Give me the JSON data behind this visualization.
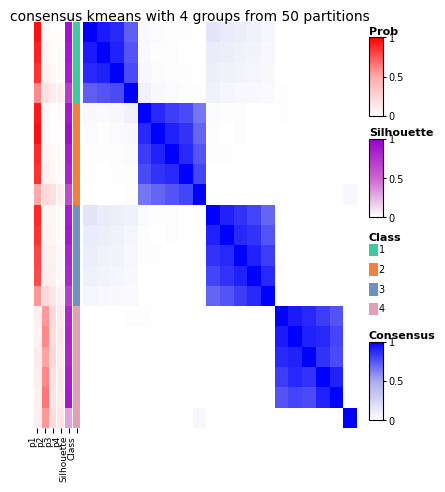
{
  "title": "consensus kmeans with 4 groups from 50 partitions",
  "n_samples": 20,
  "class_labels": [
    1,
    1,
    1,
    1,
    2,
    2,
    2,
    2,
    2,
    3,
    3,
    3,
    3,
    3,
    4,
    4,
    4,
    4,
    4,
    4
  ],
  "consensus_matrix": [
    [
      1.0,
      0.92,
      0.88,
      0.72,
      0.04,
      0.02,
      0.01,
      0.01,
      0.0,
      0.15,
      0.12,
      0.1,
      0.08,
      0.06,
      0.0,
      0.0,
      0.0,
      0.0,
      0.0,
      0.0
    ],
    [
      0.92,
      1.0,
      0.9,
      0.75,
      0.03,
      0.01,
      0.01,
      0.0,
      0.0,
      0.12,
      0.1,
      0.08,
      0.07,
      0.05,
      0.0,
      0.0,
      0.0,
      0.0,
      0.0,
      0.0
    ],
    [
      0.88,
      0.9,
      1.0,
      0.78,
      0.05,
      0.02,
      0.01,
      0.01,
      0.0,
      0.1,
      0.08,
      0.07,
      0.06,
      0.04,
      0.0,
      0.0,
      0.0,
      0.0,
      0.0,
      0.0
    ],
    [
      0.72,
      0.75,
      0.78,
      1.0,
      0.08,
      0.04,
      0.02,
      0.01,
      0.01,
      0.08,
      0.06,
      0.05,
      0.04,
      0.03,
      0.01,
      0.0,
      0.0,
      0.0,
      0.0,
      0.0
    ],
    [
      0.04,
      0.03,
      0.05,
      0.08,
      1.0,
      0.88,
      0.82,
      0.78,
      0.65,
      0.02,
      0.01,
      0.01,
      0.0,
      0.0,
      0.01,
      0.0,
      0.0,
      0.0,
      0.0,
      0.0
    ],
    [
      0.02,
      0.01,
      0.02,
      0.04,
      0.88,
      1.0,
      0.9,
      0.85,
      0.7,
      0.01,
      0.0,
      0.01,
      0.0,
      0.0,
      0.0,
      0.0,
      0.0,
      0.0,
      0.0,
      0.0
    ],
    [
      0.01,
      0.01,
      0.01,
      0.02,
      0.82,
      0.9,
      1.0,
      0.88,
      0.75,
      0.01,
      0.01,
      0.0,
      0.0,
      0.0,
      0.0,
      0.0,
      0.0,
      0.0,
      0.0,
      0.0
    ],
    [
      0.01,
      0.0,
      0.01,
      0.01,
      0.78,
      0.85,
      0.88,
      1.0,
      0.8,
      0.0,
      0.0,
      0.0,
      0.0,
      0.0,
      0.0,
      0.0,
      0.0,
      0.0,
      0.0,
      0.0
    ],
    [
      0.0,
      0.0,
      0.0,
      0.01,
      0.65,
      0.7,
      0.75,
      0.8,
      1.0,
      0.0,
      0.0,
      0.0,
      0.0,
      0.0,
      0.0,
      0.0,
      0.0,
      0.0,
      0.0,
      0.05
    ],
    [
      0.15,
      0.12,
      0.1,
      0.08,
      0.02,
      0.01,
      0.01,
      0.0,
      0.0,
      1.0,
      0.9,
      0.85,
      0.8,
      0.7,
      0.0,
      0.0,
      0.0,
      0.0,
      0.0,
      0.0
    ],
    [
      0.12,
      0.1,
      0.08,
      0.06,
      0.01,
      0.0,
      0.01,
      0.0,
      0.0,
      0.9,
      1.0,
      0.88,
      0.85,
      0.75,
      0.0,
      0.0,
      0.0,
      0.0,
      0.0,
      0.0
    ],
    [
      0.1,
      0.08,
      0.07,
      0.05,
      0.01,
      0.01,
      0.0,
      0.0,
      0.0,
      0.85,
      0.88,
      1.0,
      0.9,
      0.82,
      0.0,
      0.0,
      0.0,
      0.0,
      0.0,
      0.0
    ],
    [
      0.08,
      0.07,
      0.06,
      0.04,
      0.0,
      0.0,
      0.0,
      0.0,
      0.0,
      0.8,
      0.85,
      0.9,
      1.0,
      0.88,
      0.0,
      0.0,
      0.0,
      0.0,
      0.0,
      0.0
    ],
    [
      0.06,
      0.05,
      0.04,
      0.03,
      0.0,
      0.0,
      0.0,
      0.0,
      0.0,
      0.7,
      0.75,
      0.82,
      0.88,
      1.0,
      0.0,
      0.0,
      0.0,
      0.0,
      0.0,
      0.0
    ],
    [
      0.0,
      0.0,
      0.0,
      0.01,
      0.01,
      0.0,
      0.0,
      0.0,
      0.0,
      0.0,
      0.0,
      0.0,
      0.0,
      0.0,
      1.0,
      0.92,
      0.88,
      0.82,
      0.75,
      0.0
    ],
    [
      0.0,
      0.0,
      0.0,
      0.0,
      0.0,
      0.0,
      0.0,
      0.0,
      0.0,
      0.0,
      0.0,
      0.0,
      0.0,
      0.0,
      0.92,
      1.0,
      0.9,
      0.88,
      0.8,
      0.0
    ],
    [
      0.0,
      0.0,
      0.0,
      0.0,
      0.0,
      0.0,
      0.0,
      0.0,
      0.0,
      0.0,
      0.0,
      0.0,
      0.0,
      0.0,
      0.88,
      0.9,
      1.0,
      0.85,
      0.78,
      0.0
    ],
    [
      0.0,
      0.0,
      0.0,
      0.0,
      0.0,
      0.0,
      0.0,
      0.0,
      0.0,
      0.0,
      0.0,
      0.0,
      0.0,
      0.0,
      0.82,
      0.88,
      0.85,
      1.0,
      0.9,
      0.0
    ],
    [
      0.0,
      0.0,
      0.0,
      0.0,
      0.0,
      0.0,
      0.0,
      0.0,
      0.0,
      0.0,
      0.0,
      0.0,
      0.0,
      0.0,
      0.75,
      0.8,
      0.78,
      0.9,
      1.0,
      0.0
    ],
    [
      0.0,
      0.0,
      0.0,
      0.0,
      0.0,
      0.0,
      0.0,
      0.0,
      0.05,
      0.0,
      0.0,
      0.0,
      0.0,
      0.0,
      0.0,
      0.0,
      0.0,
      0.0,
      0.0,
      1.0
    ]
  ],
  "prob_p1": [
    0.95,
    0.9,
    0.85,
    0.6,
    0.92,
    0.95,
    0.88,
    0.85,
    0.5,
    0.88,
    0.85,
    0.8,
    0.78,
    0.55,
    0.1,
    0.08,
    0.12,
    0.1,
    0.08,
    0.1
  ],
  "prob_p2": [
    0.03,
    0.06,
    0.08,
    0.18,
    0.05,
    0.03,
    0.06,
    0.08,
    0.22,
    0.05,
    0.06,
    0.08,
    0.1,
    0.22,
    0.55,
    0.6,
    0.52,
    0.6,
    0.65,
    0.55
  ],
  "prob_p3": [
    0.01,
    0.02,
    0.05,
    0.12,
    0.01,
    0.01,
    0.04,
    0.05,
    0.18,
    0.05,
    0.06,
    0.08,
    0.08,
    0.15,
    0.22,
    0.2,
    0.24,
    0.18,
    0.15,
    0.2
  ],
  "prob_p4": [
    0.01,
    0.02,
    0.02,
    0.1,
    0.02,
    0.01,
    0.02,
    0.02,
    0.1,
    0.02,
    0.03,
    0.04,
    0.04,
    0.08,
    0.13,
    0.12,
    0.12,
    0.12,
    0.12,
    0.15
  ],
  "silhouette": [
    0.9,
    0.88,
    0.85,
    0.7,
    0.88,
    0.92,
    0.85,
    0.82,
    0.62,
    0.85,
    0.88,
    0.82,
    0.8,
    0.68,
    0.8,
    0.82,
    0.8,
    0.85,
    0.88,
    0.3
  ],
  "class_colors": {
    "1": "#3ec9a0",
    "2": "#f08040",
    "3": "#7090c0",
    "4": "#e0a0b8"
  },
  "prob_cmap_colors": [
    "#ffffff",
    "#ffaaaa",
    "#ff0000"
  ],
  "sil_cmap_colors": [
    "#ffffff",
    "#cc66cc",
    "#9900cc"
  ],
  "cons_cmap_colors": [
    "#ffffff",
    "#aaaaee",
    "#0000ff"
  ],
  "bg_color": "#ffffff",
  "title_fontsize": 10
}
